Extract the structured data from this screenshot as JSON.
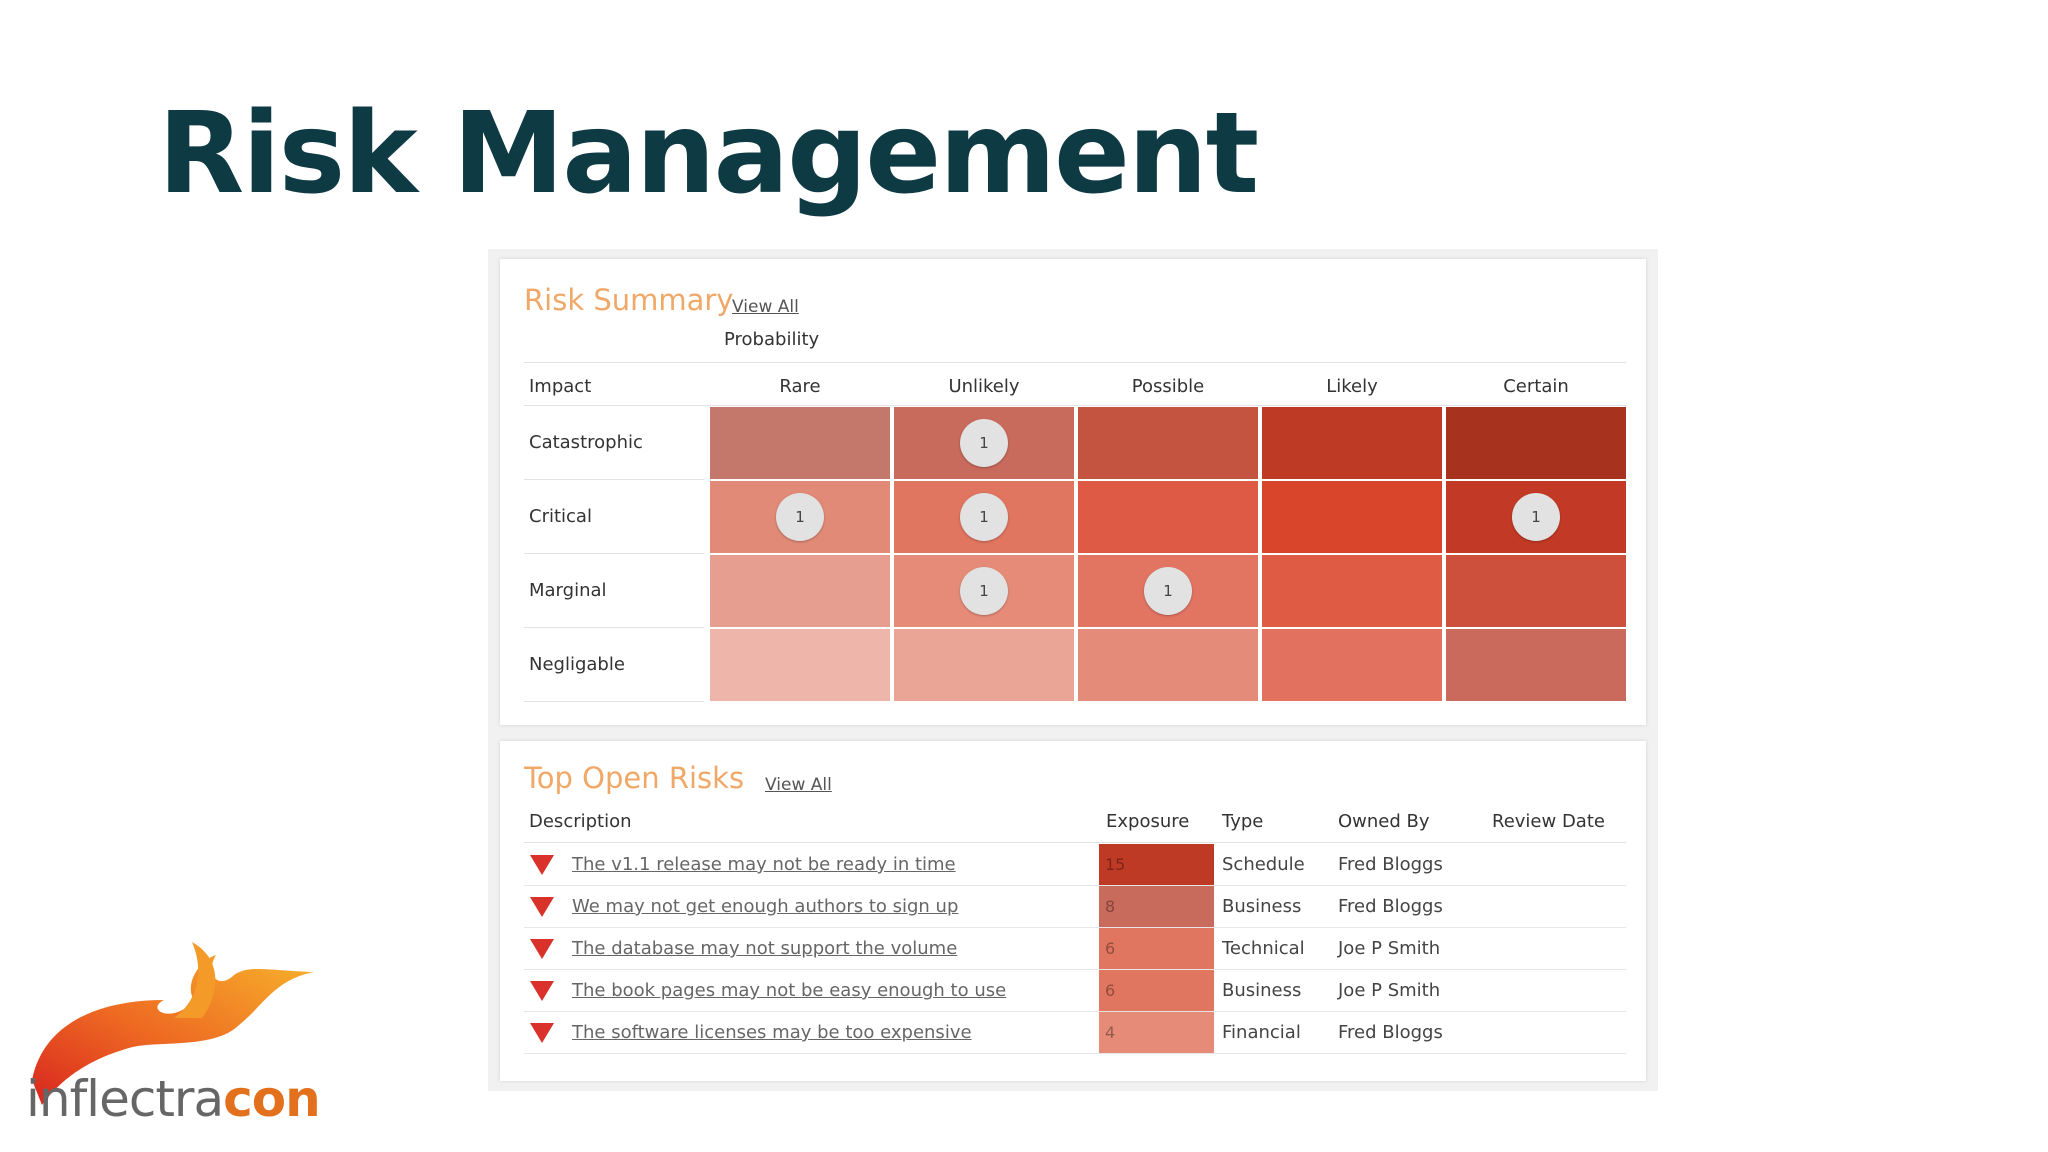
{
  "slide": {
    "title": "Risk Management"
  },
  "risk_summary": {
    "title": "Risk Summary",
    "view_all": "View All",
    "probability_label": "Probability",
    "impact_label": "Impact",
    "columns": [
      "Rare",
      "Unlikely",
      "Possible",
      "Likely",
      "Certain"
    ],
    "rows": [
      "Catastrophic",
      "Critical",
      "Marginal",
      "Negligable"
    ],
    "cell_colors": [
      [
        "#c4776b",
        "#c86a5c",
        "#c4533f",
        "#bf3a24",
        "#a7331f"
      ],
      [
        "#e08a77",
        "#e07560",
        "#de5a44",
        "#d9452b",
        "#c23a26"
      ],
      [
        "#e59e90",
        "#e58b78",
        "#e27462",
        "#e05b44",
        "#cd503c"
      ],
      [
        "#eeb5aa",
        "#eba596",
        "#e58b7a",
        "#e2725f",
        "#c96a5c"
      ]
    ],
    "counts": [
      [
        "",
        "1",
        "",
        "",
        ""
      ],
      [
        "1",
        "1",
        "",
        "",
        "1"
      ],
      [
        "",
        "1",
        "1",
        "",
        ""
      ],
      [
        "",
        "",
        "",
        "",
        ""
      ]
    ]
  },
  "top_open_risks": {
    "title": "Top Open Risks",
    "view_all": "View All",
    "headers": {
      "description": "Description",
      "exposure": "Exposure",
      "type": "Type",
      "owned_by": "Owned By",
      "review_date": "Review Date"
    },
    "rows": [
      {
        "description": "The v1.1 release may not be ready in time",
        "exposure": "15",
        "exposure_color": "#bf3a24",
        "type": "Schedule",
        "owner": "Fred Bloggs",
        "review_date": ""
      },
      {
        "description": "We may not get enough authors to sign up",
        "exposure": "8",
        "exposure_color": "#c86a5c",
        "type": "Business",
        "owner": "Fred Bloggs",
        "review_date": ""
      },
      {
        "description": "The database may not support the volume",
        "exposure": "6",
        "exposure_color": "#e07560",
        "type": "Technical",
        "owner": "Joe P Smith",
        "review_date": ""
      },
      {
        "description": "The book pages may not be easy enough to use",
        "exposure": "6",
        "exposure_color": "#e07560",
        "type": "Business",
        "owner": "Joe P Smith",
        "review_date": ""
      },
      {
        "description": "The software licenses may be too expensive",
        "exposure": "4",
        "exposure_color": "#e58b78",
        "type": "Financial",
        "owner": "Fred Bloggs",
        "review_date": ""
      }
    ]
  },
  "logo": {
    "text_plain": "inflectra",
    "text_bold": "con"
  }
}
